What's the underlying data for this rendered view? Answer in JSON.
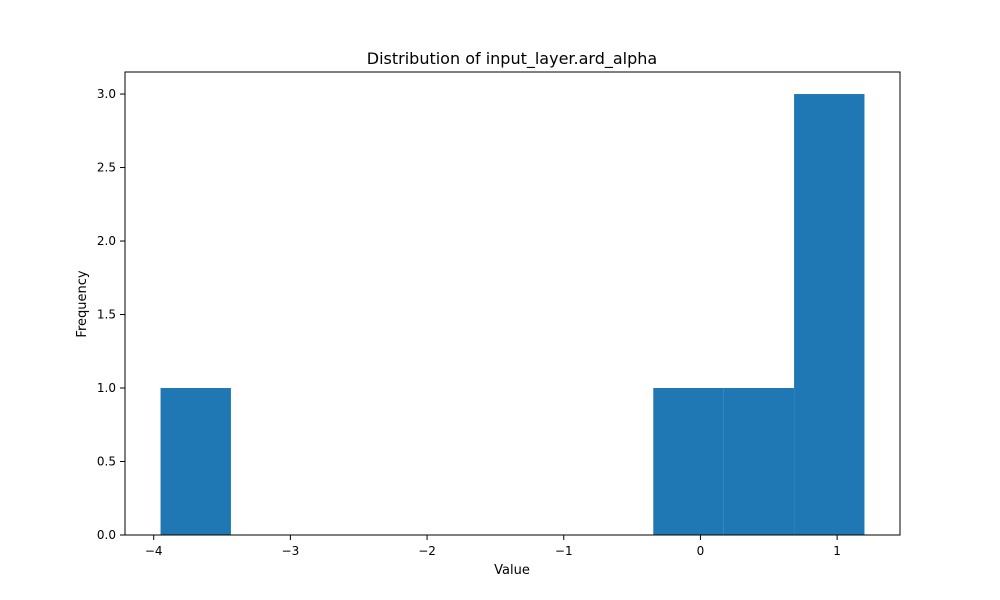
{
  "chart_data": {
    "type": "bar",
    "title": "Distribution of input_layer.ard_alpha",
    "xlabel": "Value",
    "ylabel": "Frequency",
    "bins": [
      {
        "x0": -3.95,
        "x1": -3.435,
        "count": 1
      },
      {
        "x0": -3.435,
        "x1": -2.92,
        "count": 0
      },
      {
        "x0": -2.92,
        "x1": -2.405,
        "count": 0
      },
      {
        "x0": -2.405,
        "x1": -1.89,
        "count": 0
      },
      {
        "x0": -1.89,
        "x1": -1.375,
        "count": 0
      },
      {
        "x0": -1.375,
        "x1": -0.86,
        "count": 0
      },
      {
        "x0": -0.86,
        "x1": -0.345,
        "count": 0
      },
      {
        "x0": -0.345,
        "x1": 0.17,
        "count": 1
      },
      {
        "x0": 0.17,
        "x1": 0.685,
        "count": 1
      },
      {
        "x0": 0.685,
        "x1": 1.2,
        "count": 3
      }
    ],
    "xlim": [
      -4.21,
      1.46
    ],
    "ylim": [
      0,
      3.15
    ],
    "xticks": [
      {
        "value": -4,
        "label": "−4"
      },
      {
        "value": -3,
        "label": "−3"
      },
      {
        "value": -2,
        "label": "−2"
      },
      {
        "value": -1,
        "label": "−1"
      },
      {
        "value": 0,
        "label": "0"
      },
      {
        "value": 1,
        "label": "1"
      }
    ],
    "yticks": [
      {
        "value": 0,
        "label": "0.0"
      },
      {
        "value": 0.5,
        "label": "0.5"
      },
      {
        "value": 1,
        "label": "1.0"
      },
      {
        "value": 1.5,
        "label": "1.5"
      },
      {
        "value": 2,
        "label": "2.0"
      },
      {
        "value": 2.5,
        "label": "2.5"
      },
      {
        "value": 3,
        "label": "3.0"
      }
    ],
    "bar_color": "#1f77b4",
    "grid": false,
    "legend": "none"
  }
}
